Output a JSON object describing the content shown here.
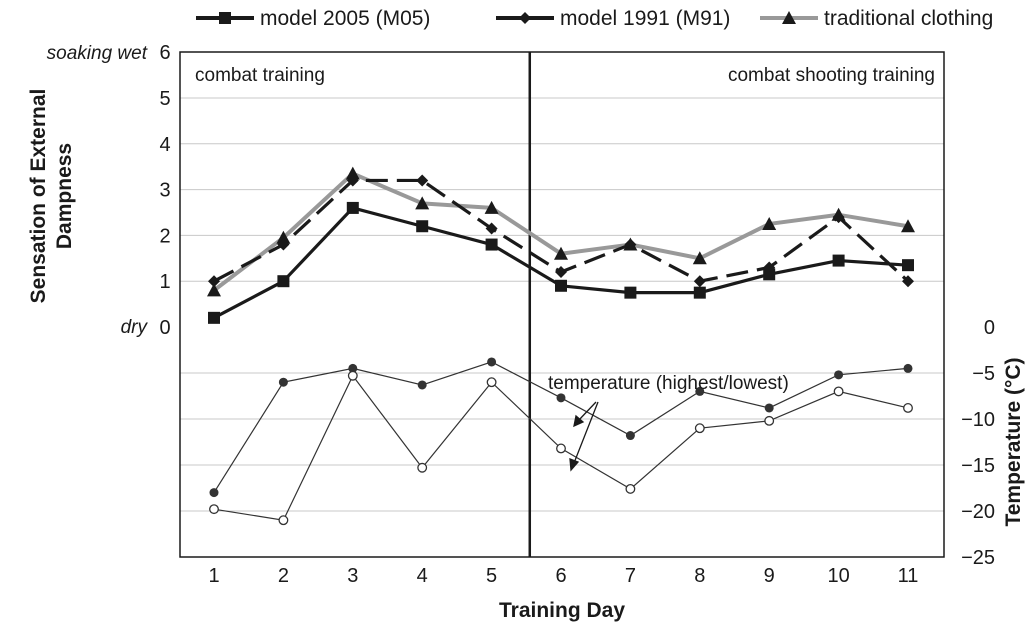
{
  "chart_data": {
    "type": "line",
    "x": [
      1,
      2,
      3,
      4,
      5,
      6,
      7,
      8,
      9,
      10,
      11
    ],
    "xlabel": "Training Day",
    "xticks": [
      "1",
      "2",
      "3",
      "4",
      "5",
      "6",
      "7",
      "8",
      "9",
      "10",
      "11"
    ],
    "ylabel": "Sensation of External Dampness",
    "ylim": [
      0,
      6
    ],
    "yticks": [
      "0",
      "1",
      "2",
      "3",
      "4",
      "5",
      "6"
    ],
    "y_top_label": "soaking wet",
    "y_bottom_label": "dry",
    "y2label": "Temperature (°C)",
    "y2lim": [
      -25,
      0
    ],
    "y2ticks": [
      "0",
      "−5",
      "−10",
      "−15",
      "−20",
      "−25"
    ],
    "phase_divider_x": 5.55,
    "phases": [
      "combat training",
      "combat shooting training"
    ],
    "legend_position": "top",
    "grid": "horizontal",
    "series": [
      {
        "name": "model 2005 (M05)",
        "marker": "square",
        "color": "#1a1a1a",
        "style": "solid",
        "values": [
          0.2,
          1.0,
          2.6,
          2.2,
          1.8,
          0.9,
          0.75,
          0.75,
          1.15,
          1.45,
          1.35
        ]
      },
      {
        "name": "model 1991 (M91)",
        "marker": "diamond",
        "color": "#1a1a1a",
        "style": "dashed",
        "values": [
          1.0,
          1.8,
          3.2,
          3.2,
          2.15,
          1.2,
          1.8,
          1.0,
          1.3,
          2.4,
          1.0
        ]
      },
      {
        "name": "traditional clothing",
        "marker": "triangle",
        "color": "#999999",
        "style": "solid",
        "values": [
          0.8,
          1.95,
          3.35,
          2.7,
          2.6,
          1.6,
          1.8,
          1.5,
          2.25,
          2.45,
          2.2
        ]
      }
    ],
    "temperature_annotation": "temperature (highest/lowest)",
    "temperature_series": [
      {
        "role": "highest",
        "marker": "filled-circle",
        "values": [
          -18,
          -6,
          -4.5,
          -6.3,
          -3.8,
          -7.7,
          -11.8,
          -7,
          -8.8,
          -5.2,
          -4.5
        ]
      },
      {
        "role": "lowest",
        "marker": "open-circle",
        "values": [
          -19.8,
          -21,
          -5.3,
          -15.3,
          -6,
          -13.2,
          -17.6,
          -11,
          -10.2,
          -7,
          -8.8
        ]
      }
    ]
  }
}
